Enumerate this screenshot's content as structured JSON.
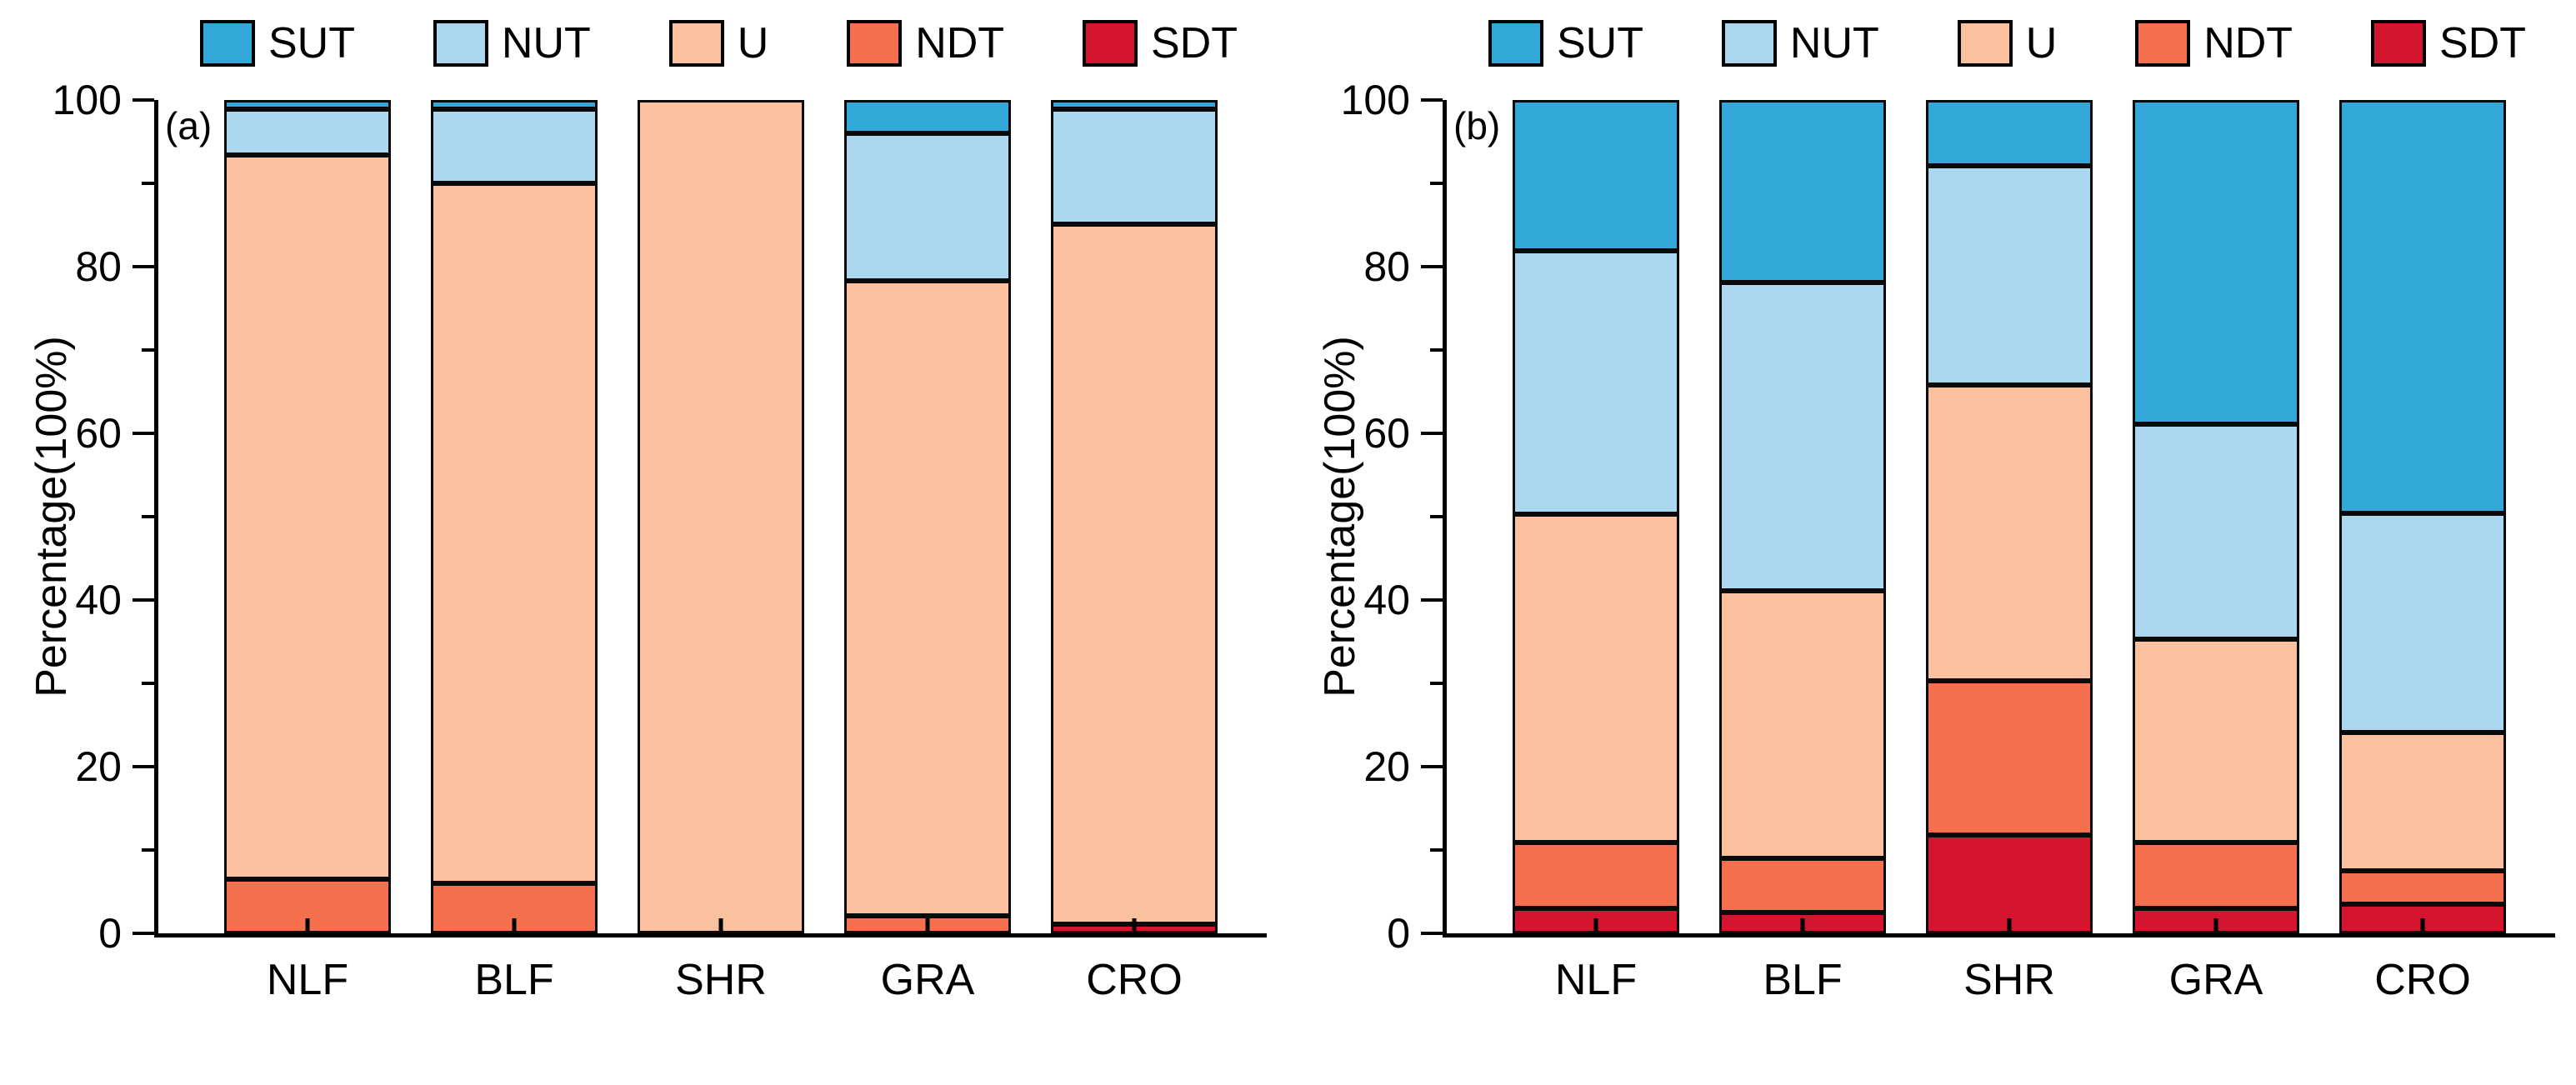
{
  "figure": {
    "ylabel": "Percentage(100%)",
    "categories": [
      "NLF",
      "BLF",
      "SHR",
      "GRA",
      "CRO"
    ],
    "yticks": [
      0,
      20,
      40,
      60,
      80,
      100
    ],
    "ytick_minor_step": 10,
    "legend_order": [
      "SUT",
      "NUT",
      "U",
      "NDT",
      "SDT"
    ],
    "colors": {
      "SUT": "#31A8D8",
      "NUT": "#ABD8EF",
      "U": "#FBC09D",
      "NDT": "#F7704E",
      "SDT": "#D3152F"
    },
    "axis_color": "#000000",
    "background": "#FFFFFF"
  },
  "chart_data": [
    {
      "type": "bar",
      "stacked": true,
      "panel_label": "(a)",
      "xlabel": "",
      "ylabel": "Percentage(100%)",
      "ylim": [
        0,
        100
      ],
      "legend_position": "top",
      "grid": false,
      "categories": [
        "NLF",
        "BLF",
        "SHR",
        "GRA",
        "CRO"
      ],
      "series": [
        {
          "name": "SUT",
          "values": [
            0.5,
            0.5,
            0,
            3.5,
            0.5
          ]
        },
        {
          "name": "NUT",
          "values": [
            5,
            8.5,
            0,
            17.5,
            13.5
          ]
        },
        {
          "name": "U",
          "values": [
            88.5,
            85.5,
            100,
            77.5,
            85.5
          ]
        },
        {
          "name": "NDT",
          "values": [
            6,
            5.5,
            0,
            1.5,
            0
          ]
        },
        {
          "name": "SDT",
          "values": [
            0,
            0,
            0,
            0,
            0.5
          ]
        }
      ]
    },
    {
      "type": "bar",
      "stacked": true,
      "panel_label": "(b)",
      "xlabel": "",
      "ylabel": "Percentage(100%)",
      "ylim": [
        0,
        100
      ],
      "legend_position": "top",
      "grid": false,
      "categories": [
        "NLF",
        "BLF",
        "SHR",
        "GRA",
        "CRO"
      ],
      "series": [
        {
          "name": "SUT",
          "values": [
            18,
            22,
            7.5,
            39.5,
            50.5
          ]
        },
        {
          "name": "NUT",
          "values": [
            32,
            37.5,
            26.5,
            26,
            26.5
          ]
        },
        {
          "name": "U",
          "values": [
            40,
            32.5,
            36,
            24.5,
            16.5
          ]
        },
        {
          "name": "NDT",
          "values": [
            7.5,
            6,
            18.5,
            7.5,
            3.5
          ]
        },
        {
          "name": "SDT",
          "values": [
            2.5,
            2,
            11.5,
            2.5,
            3
          ]
        }
      ]
    }
  ]
}
